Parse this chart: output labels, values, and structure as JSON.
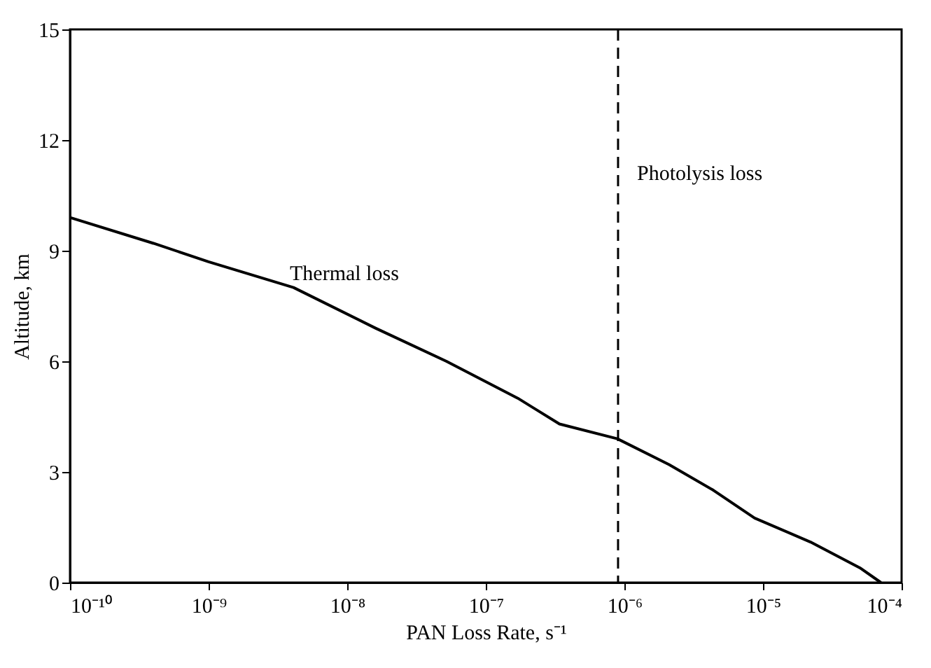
{
  "chart_data": {
    "type": "line",
    "xlabel": "PAN Loss Rate, s⁻¹",
    "ylabel": "Altitude, km",
    "log": "x",
    "x": [
      1e-10,
      4e-10,
      1e-09,
      4.1e-09,
      1.6e-08,
      5.2e-08,
      1.7e-07,
      3.4e-07,
      8.9e-07,
      2.1e-06,
      4.4e-06,
      8.7e-06,
      2.2e-05,
      5e-05,
      7.1e-05
    ],
    "series": [
      {
        "color": "#000000",
        "values": [
          9.9,
          9.2,
          8.7,
          8.0,
          6.9,
          6.0,
          5.0,
          4.3,
          3.9,
          3.2,
          2.5,
          1.75,
          1.1,
          0.4,
          0
        ]
      }
    ],
    "xlim": [
      1e-10,
      0.0001
    ],
    "xticks": [
      {
        "value": 1e-10,
        "label": "10⁻¹⁰"
      },
      {
        "value": 1e-09,
        "label": "10⁻⁹"
      },
      {
        "value": 1e-08,
        "label": "10⁻⁸"
      },
      {
        "value": 1e-07,
        "label": "10⁻⁷"
      },
      {
        "value": 1e-06,
        "label": "10⁻⁶"
      },
      {
        "value": 1e-05,
        "label": "10⁻⁵"
      },
      {
        "value": 0.0001,
        "label": "10⁻⁴"
      }
    ],
    "ylim": [
      0,
      15
    ],
    "yticks": [
      0,
      3,
      6,
      9,
      12,
      15
    ],
    "ref_lines": [
      {
        "axis": "x",
        "value": 9e-07,
        "color": "#000000",
        "line_style": "dashed"
      }
    ],
    "annotations": [
      "Thermal loss",
      "Photolysis loss"
    ],
    "grid": false,
    "marker": "none",
    "line_style": "solid"
  }
}
